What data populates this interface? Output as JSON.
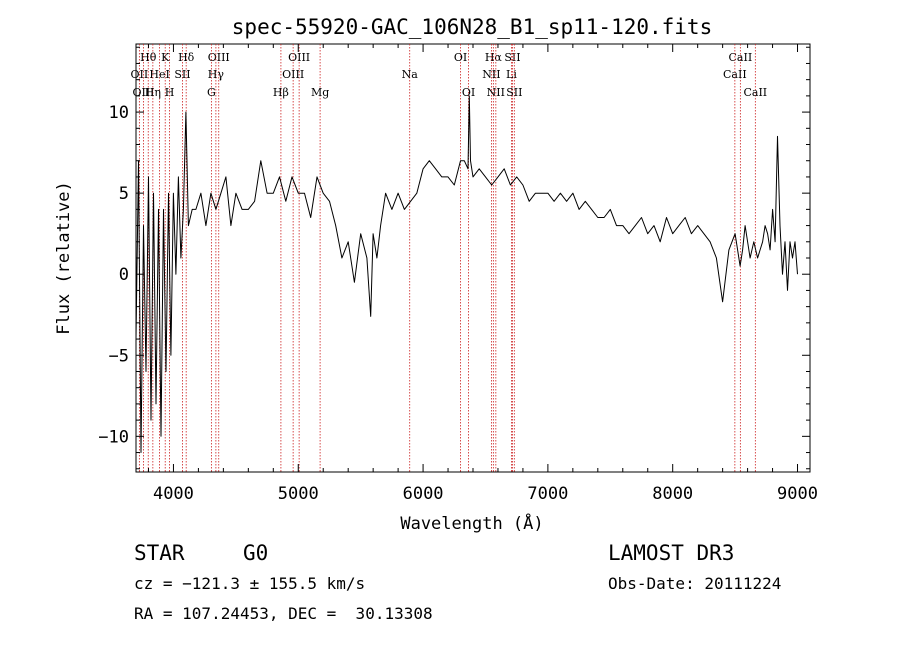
{
  "chart_data": {
    "type": "line",
    "title": "spec-55920-GAC_106N28_B1_sp11-120.fits",
    "xlabel": "Wavelength (Å)",
    "ylabel": "Flux (relative)",
    "xlim": [
      3700,
      9100
    ],
    "ylim": [
      -12.2,
      14.2
    ],
    "xticks": [
      4000,
      5000,
      6000,
      7000,
      8000,
      9000
    ],
    "yticks": [
      -10,
      -5,
      0,
      5,
      10
    ],
    "spectral_lines": [
      {
        "label": "Hθ",
        "wavelength": 3798,
        "row": 0
      },
      {
        "label": "OII",
        "wavelength": 3727,
        "row": 1
      },
      {
        "label": "OIII",
        "wavelength": 3760,
        "row": 2
      },
      {
        "label": "K",
        "wavelength": 3934,
        "row": 0
      },
      {
        "label": "HeI",
        "wavelength": 3889,
        "row": 1
      },
      {
        "label": "Hη",
        "wavelength": 3835,
        "row": 2
      },
      {
        "label": "Hδ",
        "wavelength": 4102,
        "row": 0
      },
      {
        "label": "SII",
        "wavelength": 4072,
        "row": 1
      },
      {
        "label": "H",
        "wavelength": 3969,
        "row": 2
      },
      {
        "label": "OIII",
        "wavelength": 4363,
        "row": 0
      },
      {
        "label": "Hγ",
        "wavelength": 4340,
        "row": 1
      },
      {
        "label": "G",
        "wavelength": 4304,
        "row": 2
      },
      {
        "label": "OIII",
        "wavelength": 5007,
        "row": 0
      },
      {
        "label": "OIII",
        "wavelength": 4959,
        "row": 1
      },
      {
        "label": "Hβ",
        "wavelength": 4861,
        "row": 2
      },
      {
        "label": "Mg",
        "wavelength": 5175,
        "row": 2
      },
      {
        "label": "Na",
        "wavelength": 5893,
        "row": 1
      },
      {
        "label": "OI",
        "wavelength": 6300,
        "row": 0
      },
      {
        "label": "OI",
        "wavelength": 6364,
        "row": 2
      },
      {
        "label": "Hα",
        "wavelength": 6563,
        "row": 0
      },
      {
        "label": "SII",
        "wavelength": 6716,
        "row": 0
      },
      {
        "label": "NII",
        "wavelength": 6548,
        "row": 1
      },
      {
        "label": "Li",
        "wavelength": 6708,
        "row": 1
      },
      {
        "label": "NII",
        "wavelength": 6583,
        "row": 2
      },
      {
        "label": "SII",
        "wavelength": 6731,
        "row": 2
      },
      {
        "label": "CaII",
        "wavelength": 8542,
        "row": 0
      },
      {
        "label": "CaII",
        "wavelength": 8498,
        "row": 1
      },
      {
        "label": "CaII",
        "wavelength": 8662,
        "row": 2
      }
    ],
    "series": [
      {
        "name": "flux",
        "x": [
          3700,
          3720,
          3740,
          3760,
          3780,
          3800,
          3820,
          3840,
          3860,
          3880,
          3900,
          3920,
          3940,
          3960,
          3980,
          4000,
          4020,
          4040,
          4060,
          4080,
          4100,
          4120,
          4150,
          4180,
          4220,
          4260,
          4300,
          4340,
          4380,
          4420,
          4460,
          4500,
          4550,
          4600,
          4650,
          4700,
          4750,
          4800,
          4850,
          4900,
          4950,
          5000,
          5050,
          5100,
          5150,
          5200,
          5250,
          5300,
          5350,
          5400,
          5450,
          5500,
          5550,
          5580,
          5600,
          5630,
          5660,
          5700,
          5750,
          5800,
          5850,
          5900,
          5950,
          6000,
          6050,
          6100,
          6150,
          6200,
          6250,
          6300,
          6330,
          6360,
          6370,
          6380,
          6400,
          6450,
          6500,
          6550,
          6600,
          6650,
          6700,
          6750,
          6800,
          6850,
          6900,
          6950,
          7000,
          7050,
          7100,
          7150,
          7200,
          7250,
          7300,
          7350,
          7400,
          7450,
          7500,
          7550,
          7600,
          7650,
          7700,
          7750,
          7800,
          7850,
          7900,
          7950,
          8000,
          8050,
          8100,
          8150,
          8200,
          8250,
          8300,
          8350,
          8400,
          8450,
          8500,
          8540,
          8560,
          8580,
          8600,
          8620,
          8650,
          8680,
          8700,
          8720,
          8740,
          8760,
          8780,
          8800,
          8820,
          8840,
          8860,
          8880,
          8900,
          8920,
          8940,
          8960,
          8980,
          9000
        ],
        "y": [
          -4,
          7,
          -11,
          3,
          -6,
          6,
          -9,
          5,
          -8,
          4,
          -10,
          4,
          -6,
          5,
          -5,
          5,
          0,
          6,
          1,
          4,
          10,
          3,
          4,
          4,
          5,
          3,
          5,
          4,
          5,
          6,
          3,
          5,
          4,
          4,
          4.5,
          7,
          5,
          5,
          6,
          4.5,
          6,
          5,
          5,
          3.5,
          6,
          5,
          4.5,
          3,
          1,
          2,
          -0.5,
          2.5,
          1,
          -2.6,
          2.5,
          1,
          3,
          5,
          4,
          5,
          4,
          4.5,
          5,
          6.5,
          7,
          6.5,
          6,
          6,
          5.5,
          7,
          7,
          6.5,
          11,
          7,
          6,
          6.5,
          6,
          5.5,
          6,
          6.5,
          5.5,
          6,
          5.5,
          4.5,
          5,
          5,
          5,
          4.5,
          5,
          4.5,
          5,
          4,
          4.5,
          4,
          3.5,
          3.5,
          4,
          3,
          3,
          2.5,
          3,
          3.5,
          2.5,
          3,
          2,
          3.5,
          2.5,
          3,
          3.5,
          2.5,
          3,
          2.5,
          2,
          1,
          -1.7,
          1.5,
          2.5,
          0.5,
          1.5,
          3,
          2,
          1,
          2,
          1,
          1.5,
          2,
          3,
          2.5,
          1.5,
          4,
          2,
          8.5,
          3,
          0,
          2,
          -1,
          2,
          1,
          2,
          0
        ]
      }
    ]
  },
  "footer": {
    "object_type": "STAR",
    "subclass": "G0",
    "survey": "LAMOST DR3",
    "velocity": "cz = −121.3 ± 155.5 km/s",
    "obs_date": "Obs-Date: 20111224",
    "coords": "RA = 107.24453, DEC =  30.13308"
  }
}
